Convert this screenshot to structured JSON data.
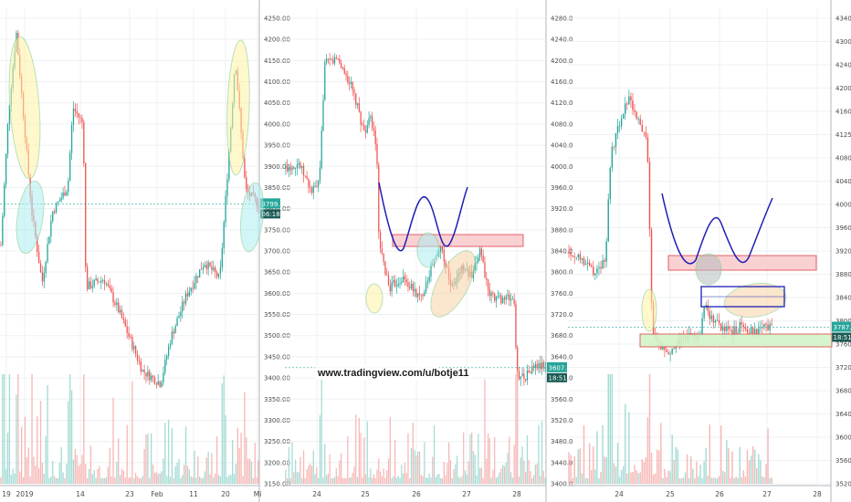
{
  "watermark": "www.tradingview.com/u/botje11",
  "colors": {
    "up": "#26a69a",
    "down": "#ef5350",
    "vol_up": "#8fd3c9",
    "vol_down": "#f4a6a4",
    "grid": "#eef0f3",
    "axis_line": "#b2b5be",
    "pattern_line": "#1e1eb4",
    "resistance_fill": "#f8c9cc",
    "resistance_stroke": "#e0454f",
    "support_fill": "#d2f3c8",
    "support_stroke": "#d9534f",
    "ellipse_yellow": "#fff3a6",
    "ellipse_cyan": "#aeeef2",
    "ellipse_orange": "#f9d2a7",
    "ellipse_gray": "#b7bcc2",
    "price_tag": "#26a69a"
  },
  "chart_data": [
    {
      "type": "candlestick",
      "panel": "left",
      "ylim": [
        3130,
        4265
      ],
      "yticks": [
        "4250.00",
        "4200.00",
        "4150.00",
        "4100.00",
        "4050.00",
        "4000.00",
        "3950.00",
        "3900.00",
        "3850.00",
        "3800.00",
        "3750.00",
        "3700.00",
        "3650.00",
        "3600.00",
        "3550.00",
        "3500.00",
        "3450.00",
        "3400.00",
        "3350.00",
        "3300.00",
        "3250.00",
        "3200.00",
        "3150.00"
      ],
      "xticks": [
        "19",
        "2019",
        "14",
        "23",
        "Feb",
        "11",
        "20",
        "Mi"
      ],
      "last_price": "3799.34",
      "countdown": "06:18:51",
      "path": [
        [
          0,
          3700
        ],
        [
          0.03,
          4020
        ],
        [
          0.06,
          4210
        ],
        [
          0.12,
          3780
        ],
        [
          0.16,
          3610
        ],
        [
          0.2,
          3780
        ],
        [
          0.26,
          3840
        ],
        [
          0.28,
          4030
        ],
        [
          0.32,
          3990
        ],
        [
          0.33,
          3600
        ],
        [
          0.4,
          3620
        ],
        [
          0.46,
          3540
        ],
        [
          0.55,
          3400
        ],
        [
          0.62,
          3370
        ],
        [
          0.66,
          3480
        ],
        [
          0.72,
          3580
        ],
        [
          0.79,
          3660
        ],
        [
          0.85,
          3620
        ],
        [
          0.89,
          3960
        ],
        [
          0.91,
          4150
        ],
        [
          0.95,
          3830
        ],
        [
          1.0,
          3800
        ]
      ]
    },
    {
      "type": "candlestick",
      "panel": "middle",
      "ylim": [
        3385,
        4295
      ],
      "yticks": [
        "4280.0",
        "4240.0",
        "4200.0",
        "4160.0",
        "4120.0",
        "4080.0",
        "4040.0",
        "4000.0",
        "3960.0",
        "3920.0",
        "3880.0",
        "3840.0",
        "3800.0",
        "3760.0",
        "3720.0",
        "3680.0",
        "3640.0",
        "3600.0",
        "3560.0",
        "3520.0",
        "3480.0",
        "3440.0",
        "3400.0"
      ],
      "xticks": [
        "24",
        "25",
        "26",
        "27",
        "28"
      ],
      "last_price": "3607.5",
      "countdown": "18:51",
      "path": [
        [
          0,
          3990
        ],
        [
          0.05,
          4000
        ],
        [
          0.1,
          3945
        ],
        [
          0.13,
          3960
        ],
        [
          0.15,
          4190
        ],
        [
          0.2,
          4200
        ],
        [
          0.25,
          4150
        ],
        [
          0.28,
          4100
        ],
        [
          0.3,
          4060
        ],
        [
          0.33,
          4085
        ],
        [
          0.35,
          4030
        ],
        [
          0.36,
          3840
        ],
        [
          0.4,
          3760
        ],
        [
          0.45,
          3780
        ],
        [
          0.52,
          3740
        ],
        [
          0.56,
          3800
        ],
        [
          0.6,
          3840
        ],
        [
          0.64,
          3760
        ],
        [
          0.68,
          3800
        ],
        [
          0.72,
          3780
        ],
        [
          0.75,
          3840
        ],
        [
          0.78,
          3750
        ],
        [
          0.82,
          3740
        ],
        [
          0.88,
          3740
        ],
        [
          0.89,
          3595
        ],
        [
          0.92,
          3590
        ],
        [
          0.96,
          3610
        ],
        [
          1.0,
          3610
        ]
      ]
    },
    {
      "type": "candlestick",
      "panel": "right",
      "ylim": [
        3500,
        4370
      ],
      "yticks": [
        "4340.0",
        "4300.0",
        "4240.0",
        "4200.0",
        "4160.0",
        "4125.0",
        "4080.0",
        "4040.0",
        "4000.0",
        "3960.0",
        "3920.0",
        "3880.0",
        "3840.0",
        "3800.0",
        "3760.0",
        "3720.0",
        "3680.0",
        "3640.0",
        "3600.0",
        "3560.0",
        "3520.0"
      ],
      "xticks": [
        "24",
        "25",
        "26",
        "27",
        "28"
      ],
      "last_price": "3787.0",
      "countdown": "18:51",
      "path": [
        [
          0,
          3925
        ],
        [
          0.07,
          3905
        ],
        [
          0.09,
          3890
        ],
        [
          0.14,
          3905
        ],
        [
          0.16,
          4100
        ],
        [
          0.2,
          4170
        ],
        [
          0.23,
          4210
        ],
        [
          0.27,
          4160
        ],
        [
          0.3,
          4125
        ],
        [
          0.32,
          3770
        ],
        [
          0.35,
          3755
        ],
        [
          0.38,
          3740
        ],
        [
          0.42,
          3760
        ],
        [
          0.46,
          3770
        ],
        [
          0.5,
          3765
        ],
        [
          0.52,
          3825
        ],
        [
          0.55,
          3800
        ],
        [
          0.58,
          3790
        ],
        [
          0.62,
          3775
        ],
        [
          0.66,
          3790
        ],
        [
          0.7,
          3780
        ],
        [
          0.74,
          3785
        ],
        [
          0.78,
          3785
        ]
      ]
    }
  ]
}
